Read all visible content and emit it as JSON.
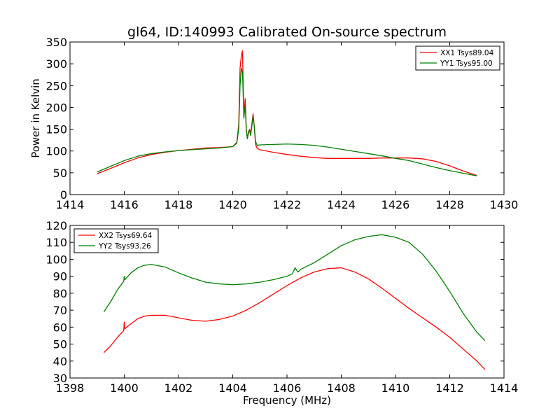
{
  "page_title": "gl64, ID:140993 Calibrated On-source spectrum",
  "chart_data": [
    {
      "type": "line",
      "title": "gl64, ID:140993 Calibrated On-source spectrum",
      "xlabel": "",
      "ylabel": "Power in Kelvin",
      "xlim": [
        1414,
        1430
      ],
      "ylim": [
        0,
        350
      ],
      "xticks": [
        1414,
        1416,
        1418,
        1420,
        1422,
        1424,
        1426,
        1428,
        1430
      ],
      "yticks": [
        0,
        50,
        100,
        150,
        200,
        250,
        300,
        350
      ],
      "legend_position": "top-right",
      "series": [
        {
          "name": "XX1 Tsys89.04",
          "color": "#ff0000",
          "x": [
            1415.0,
            1415.5,
            1416.0,
            1416.5,
            1417.0,
            1417.5,
            1418.0,
            1418.5,
            1419.0,
            1419.5,
            1420.0,
            1420.15,
            1420.22,
            1420.27,
            1420.32,
            1420.36,
            1420.41,
            1420.46,
            1420.5,
            1420.54,
            1420.58,
            1420.62,
            1420.66,
            1420.71,
            1420.75,
            1420.79,
            1420.84,
            1420.9,
            1421.0,
            1421.5,
            1422.0,
            1422.5,
            1423.0,
            1423.5,
            1424.0,
            1424.5,
            1425.0,
            1425.5,
            1426.0,
            1426.5,
            1427.0,
            1427.5,
            1428.0,
            1428.5,
            1429.0
          ],
          "y": [
            48,
            60,
            73,
            84,
            92,
            97,
            101,
            104,
            107,
            108,
            110,
            120,
            160,
            290,
            320,
            330,
            180,
            220,
            150,
            130,
            140,
            150,
            140,
            165,
            185,
            160,
            115,
            106,
            103,
            97,
            92,
            88,
            85,
            83,
            83,
            83,
            83,
            84,
            84,
            84,
            82,
            76,
            66,
            54,
            44
          ]
        },
        {
          "name": "YY1 Tsys95.00",
          "color": "#008000",
          "x": [
            1415.0,
            1415.5,
            1416.0,
            1416.5,
            1417.0,
            1417.5,
            1418.0,
            1418.5,
            1419.0,
            1419.5,
            1420.0,
            1420.15,
            1420.22,
            1420.27,
            1420.32,
            1420.36,
            1420.41,
            1420.46,
            1420.5,
            1420.54,
            1420.58,
            1420.62,
            1420.66,
            1420.71,
            1420.75,
            1420.79,
            1420.84,
            1420.9,
            1421.0,
            1421.5,
            1422.0,
            1422.5,
            1423.0,
            1423.5,
            1424.0,
            1424.5,
            1425.0,
            1425.5,
            1426.0,
            1426.5,
            1427.0,
            1427.5,
            1428.0,
            1428.5,
            1429.0
          ],
          "y": [
            52,
            65,
            78,
            88,
            94,
            98,
            101,
            103,
            105,
            107,
            110,
            118,
            150,
            250,
            290,
            280,
            175,
            205,
            145,
            128,
            145,
            148,
            135,
            160,
            180,
            158,
            122,
            113,
            114,
            115,
            116,
            115,
            113,
            109,
            104,
            99,
            94,
            89,
            83,
            78,
            70,
            62,
            55,
            49,
            43
          ]
        }
      ]
    },
    {
      "type": "line",
      "title": "",
      "xlabel": "Frequency (MHz)",
      "ylabel": "",
      "xlim": [
        1398,
        1414
      ],
      "ylim": [
        30,
        120
      ],
      "xticks": [
        1398,
        1400,
        1402,
        1404,
        1406,
        1408,
        1410,
        1412,
        1414
      ],
      "yticks": [
        30,
        40,
        50,
        60,
        70,
        80,
        90,
        100,
        110,
        120
      ],
      "legend_position": "top-left",
      "series": [
        {
          "name": "XX2 Tsys69.64",
          "color": "#ff0000",
          "x": [
            1399.25,
            1399.5,
            1399.75,
            1399.98,
            1400.0,
            1400.02,
            1400.25,
            1400.5,
            1400.75,
            1401.0,
            1401.5,
            1402.0,
            1402.5,
            1403.0,
            1403.5,
            1404.0,
            1404.5,
            1405.0,
            1405.5,
            1406.0,
            1406.5,
            1407.0,
            1407.5,
            1408.0,
            1408.5,
            1409.0,
            1409.5,
            1410.0,
            1410.5,
            1411.0,
            1411.5,
            1412.0,
            1412.5,
            1413.0,
            1413.3
          ],
          "y": [
            45,
            49,
            54,
            58,
            63,
            59,
            62,
            65,
            66.5,
            67,
            67,
            65.5,
            64,
            63.5,
            64.5,
            66.5,
            70,
            74.5,
            79.5,
            84.5,
            89,
            92.5,
            94.5,
            95,
            92.5,
            88.5,
            83,
            77,
            71,
            65.5,
            60,
            54,
            47,
            40,
            35
          ]
        },
        {
          "name": "YY2 Tsys93.26",
          "color": "#008000",
          "x": [
            1399.25,
            1399.5,
            1399.75,
            1399.98,
            1400.0,
            1400.02,
            1400.25,
            1400.5,
            1400.75,
            1401.0,
            1401.5,
            1402.0,
            1402.5,
            1403.0,
            1403.5,
            1404.0,
            1404.5,
            1405.0,
            1405.5,
            1406.0,
            1406.2,
            1406.3,
            1406.4,
            1406.5,
            1407.0,
            1407.5,
            1408.0,
            1408.5,
            1409.0,
            1409.5,
            1410.0,
            1410.5,
            1411.0,
            1411.5,
            1412.0,
            1412.5,
            1413.0,
            1413.3
          ],
          "y": [
            69,
            75,
            82,
            87,
            90,
            88,
            92,
            95,
            96.5,
            97,
            95.5,
            92,
            89,
            86.5,
            85.5,
            85,
            85.5,
            86.5,
            88,
            90,
            91.5,
            95,
            92.5,
            94,
            98,
            103,
            108,
            111.5,
            113.5,
            114.5,
            113,
            110,
            103,
            93,
            81,
            68,
            57,
            52
          ]
        }
      ]
    }
  ]
}
